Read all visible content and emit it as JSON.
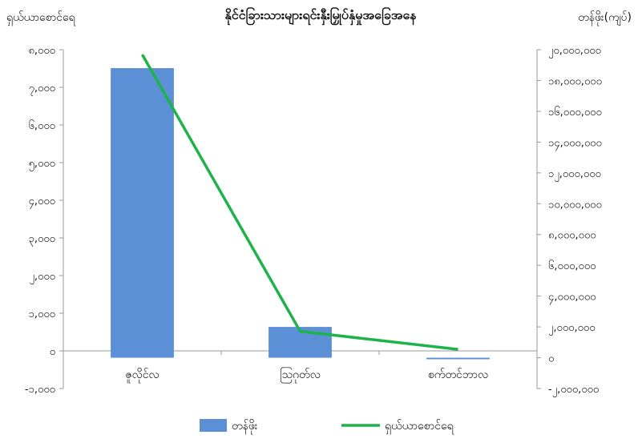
{
  "chart_data": {
    "type": "bar",
    "title": "နိုင်ငံခြားသားများရင်းနှီးမြှုပ်နှံမှုအခြေအနေ",
    "ylabel_left": "ရှယ်ယာစောင်ရေ",
    "ylabel_right": "တန်ဖိုး(ကျပ်)",
    "categories": [
      "ဇူလိုင်လ",
      "ဩဂုတ်လ",
      "စက်တင်ဘာလ"
    ],
    "left_axis": {
      "range": [
        -1000,
        8000
      ],
      "ticks": [
        -1000,
        0,
        1000,
        2000,
        3000,
        4000,
        5000,
        6000,
        7000,
        8000
      ],
      "tick_labels": [
        "-၁,၀၀၀",
        "၀",
        "၁,၀၀၀",
        "၂,၀၀၀",
        "၃,၀၀၀",
        "၄,၀၀၀",
        "၅,၀၀၀",
        "၆,၀၀၀",
        "၇,၀၀၀",
        "၈,၀၀၀"
      ]
    },
    "right_axis": {
      "range": [
        -2000000,
        20000000
      ],
      "ticks": [
        -2000000,
        0,
        2000000,
        4000000,
        6000000,
        8000000,
        10000000,
        12000000,
        14000000,
        16000000,
        18000000,
        20000000
      ],
      "tick_labels": [
        "-၂,၀၀၀,၀၀၀",
        "၀",
        "၂,၀၀၀,၀၀၀",
        "၄,၀၀၀,၀၀၀",
        "၆,၀၀၀,၀၀၀",
        "၈,၀၀၀,၀၀၀",
        "၁၀,၀၀၀,၀၀၀",
        "၁၂,၀၀၀,၀၀၀",
        "၁၄,၀၀၀,၀၀၀",
        "၁၆,၀၀၀,၀၀၀",
        "၁၈,၀၀၀,၀၀၀",
        "၂၀,၀၀၀,၀၀၀"
      ]
    },
    "series": [
      {
        "name": "တန်ဖိုး",
        "type": "bar",
        "axis": "right",
        "color": "#5b8fd6",
        "values": [
          18800000,
          2000000,
          -100000
        ]
      },
      {
        "name": "ရှယ်ယာစောင်ရေ",
        "type": "line",
        "axis": "left",
        "color": "#1db34a",
        "values": [
          7870,
          520,
          40
        ]
      }
    ],
    "legend": {
      "position": "bottom",
      "items": [
        "တန်ဖိုး",
        "ရှယ်ယာစောင်ရေ"
      ]
    },
    "grid": {
      "horizontal": false,
      "vertical": false
    }
  }
}
